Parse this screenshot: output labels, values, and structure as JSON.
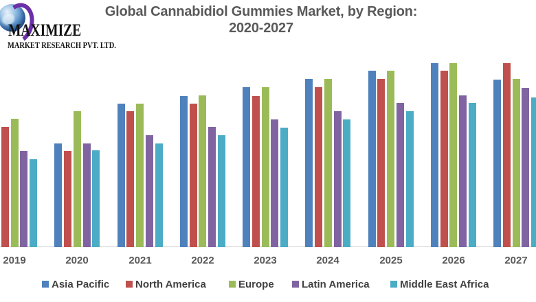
{
  "logo": {
    "name": "MAXIMIZE",
    "subtitle": "MARKET RESEARCH PVT. LTD."
  },
  "title": {
    "line1": "Global Cannabidiol Gummies Market, by Region:",
    "line2": "2020-2027"
  },
  "colors": {
    "title_text": "#595959",
    "axis_label_text": "#595959",
    "legend_text": "#404040",
    "axis_line": "#D9D9D9",
    "background": "#FFFFFF",
    "logo_swoosh_purple": "#6B2FA8"
  },
  "chart_data": {
    "type": "bar",
    "title": "Global Cannabidiol Gummies Market, by Region: 2020-2027",
    "categories": [
      "2019",
      "2020",
      "2021",
      "2022",
      "2023",
      "2024",
      "2025",
      "2026",
      "2027"
    ],
    "series": [
      {
        "name": "Asia Pacific",
        "color": "#4F81BD",
        "values": [
          null,
          151,
          209,
          220,
          233,
          245,
          257,
          268,
          244
        ]
      },
      {
        "name": "North America",
        "color": "#C0504D",
        "values": [
          175,
          140,
          198,
          209,
          220,
          233,
          245,
          257,
          268
        ]
      },
      {
        "name": "Europe",
        "color": "#9BBB59",
        "values": [
          187,
          198,
          209,
          221,
          233,
          245,
          257,
          268,
          245
        ]
      },
      {
        "name": "Latin America",
        "color": "#8064A2",
        "values": [
          140,
          151,
          163,
          175,
          186,
          198,
          210,
          221,
          232
        ]
      },
      {
        "name": "Middle East Africa",
        "color": "#4BACC6",
        "values": [
          128,
          141,
          151,
          163,
          174,
          186,
          198,
          210,
          218
        ]
      }
    ],
    "value_units": "relative bar height in screenshot pixels (no y-axis scale shown)",
    "notes": "2019 Asia Pacific bar and right edge of 2027 Middle East Africa bar are cropped off the image edges",
    "xlabel": "",
    "ylabel": "",
    "grid": false,
    "legend_position": "bottom"
  }
}
